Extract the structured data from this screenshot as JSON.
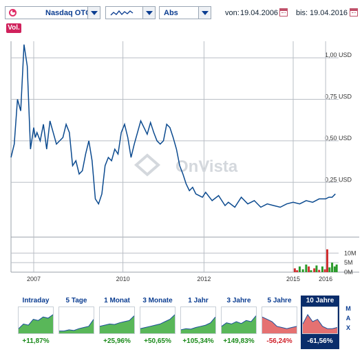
{
  "toolbar": {
    "exchange": "Nasdaq OTC",
    "scale": "Abs",
    "chart_style_icon": "line-chart-icon",
    "from_label": "von:",
    "from_date": "19.04.2006",
    "to_label": "bis:",
    "to_date": "19.04.2016"
  },
  "volume_button": "Vol.",
  "watermark": "OnVista",
  "colors": {
    "line": "#0b4a8f",
    "grid": "#b9bec5",
    "vol_up": "#2a9a2a",
    "vol_down": "#d03030",
    "accent": "#d0215c",
    "active_period_bg": "#0a2d6b",
    "positive": "#1a8a1a",
    "negative": "#d0202a"
  },
  "chart_data": {
    "type": "line",
    "series": [
      {
        "x": [
          2006.3,
          2006.4,
          2006.5,
          2006.6,
          2006.7,
          2006.8,
          2006.9,
          2007.0,
          2007.05,
          2007.1,
          2007.2,
          2007.3,
          2007.4,
          2007.5,
          2007.6,
          2007.7,
          2007.8,
          2007.9,
          2008.0,
          2008.1,
          2008.2,
          2008.3,
          2008.4,
          2008.5,
          2008.6,
          2008.7,
          2008.8,
          2008.9,
          2009.0,
          2009.1,
          2009.2,
          2009.3,
          2009.4,
          2009.5,
          2009.6,
          2009.7,
          2009.8,
          2009.9,
          2010.0,
          2010.1,
          2010.2,
          2010.3,
          2010.4,
          2010.5,
          2010.6,
          2010.7,
          2010.8,
          2010.9,
          2011.0,
          2011.1,
          2011.2,
          2011.3,
          2011.4,
          2011.5,
          2011.6,
          2011.7,
          2011.8,
          2011.9,
          2012.0,
          2012.1,
          2012.2,
          2012.3,
          2012.5,
          2012.7,
          2012.9,
          2013.0,
          2013.2,
          2013.4,
          2013.6,
          2013.8,
          2014.0,
          2014.2,
          2014.4,
          2014.6,
          2014.8,
          2015.0,
          2015.2,
          2015.4,
          2015.6,
          2015.8,
          2016.0,
          2016.1,
          2016.2,
          2016.3
        ],
        "y": [
          0.4,
          0.48,
          0.75,
          0.68,
          1.08,
          0.95,
          0.45,
          0.58,
          0.52,
          0.55,
          0.5,
          0.6,
          0.45,
          0.62,
          0.55,
          0.48,
          0.5,
          0.52,
          0.6,
          0.55,
          0.35,
          0.38,
          0.3,
          0.32,
          0.42,
          0.5,
          0.38,
          0.15,
          0.12,
          0.18,
          0.35,
          0.4,
          0.38,
          0.45,
          0.42,
          0.55,
          0.6,
          0.52,
          0.4,
          0.48,
          0.55,
          0.62,
          0.58,
          0.54,
          0.61,
          0.55,
          0.5,
          0.48,
          0.5,
          0.6,
          0.58,
          0.52,
          0.45,
          0.35,
          0.3,
          0.24,
          0.2,
          0.22,
          0.18,
          0.17,
          0.16,
          0.19,
          0.14,
          0.17,
          0.11,
          0.13,
          0.1,
          0.16,
          0.12,
          0.14,
          0.1,
          0.12,
          0.11,
          0.1,
          0.12,
          0.13,
          0.12,
          0.14,
          0.13,
          0.15,
          0.15,
          0.16,
          0.16,
          0.18
        ]
      }
    ],
    "y_ticks": [
      "1,00 USD",
      "0,75 USD",
      "0,50 USD",
      "0,25 USD"
    ],
    "y_tick_values": [
      1.0,
      0.75,
      0.5,
      0.25
    ],
    "x_ticks": [
      "2007",
      "2010",
      "2012",
      "2015",
      "2016"
    ],
    "x_tick_values": [
      2007,
      2009.75,
      2012.25,
      2015,
      2016
    ],
    "ylim": [
      -0.08,
      1.1
    ],
    "xlim": [
      2006.3,
      2016.4
    ],
    "volume_ticks": [
      "10M",
      "5M",
      "0M"
    ],
    "volume_tick_values": [
      10,
      5,
      0
    ],
    "volume_ylim": [
      0,
      13
    ],
    "volume": [
      {
        "x": 2015.05,
        "v": 2,
        "up": false
      },
      {
        "x": 2015.12,
        "v": 1,
        "up": false
      },
      {
        "x": 2015.2,
        "v": 3,
        "up": true
      },
      {
        "x": 2015.3,
        "v": 1.5,
        "up": true
      },
      {
        "x": 2015.4,
        "v": 4,
        "up": true
      },
      {
        "x": 2015.48,
        "v": 3,
        "up": false
      },
      {
        "x": 2015.55,
        "v": 1,
        "up": true
      },
      {
        "x": 2015.65,
        "v": 2,
        "up": false
      },
      {
        "x": 2015.72,
        "v": 3.5,
        "up": true
      },
      {
        "x": 2015.8,
        "v": 1.2,
        "up": false
      },
      {
        "x": 2015.9,
        "v": 3,
        "up": true
      },
      {
        "x": 2015.98,
        "v": 1.5,
        "up": false
      },
      {
        "x": 2016.05,
        "v": 12,
        "up": false
      },
      {
        "x": 2016.12,
        "v": 2.5,
        "up": true
      },
      {
        "x": 2016.2,
        "v": 5,
        "up": true
      },
      {
        "x": 2016.28,
        "v": 3,
        "up": true
      },
      {
        "x": 2016.34,
        "v": 4,
        "up": true
      }
    ]
  },
  "periods": [
    {
      "label": "Intraday",
      "value": "+11,87%",
      "positive": true,
      "active": false,
      "trend": [
        0.2,
        0.4,
        0.35,
        0.6,
        0.55,
        0.7,
        0.65,
        0.8
      ]
    },
    {
      "label": "5 Tage",
      "value": "",
      "positive": true,
      "active": false,
      "trend": [
        0.1,
        0.1,
        0.15,
        0.12,
        0.2,
        0.25,
        0.3,
        0.6
      ]
    },
    {
      "label": "1 Monat",
      "value": "+25,96%",
      "positive": true,
      "active": false,
      "trend": [
        0.3,
        0.35,
        0.4,
        0.38,
        0.45,
        0.5,
        0.55,
        0.75
      ]
    },
    {
      "label": "3 Monate",
      "value": "+50,65%",
      "positive": true,
      "active": false,
      "trend": [
        0.2,
        0.25,
        0.3,
        0.35,
        0.4,
        0.5,
        0.6,
        0.8
      ]
    },
    {
      "label": "1 Jahr",
      "value": "+105,34%",
      "positive": true,
      "active": false,
      "trend": [
        0.15,
        0.2,
        0.18,
        0.25,
        0.3,
        0.35,
        0.45,
        0.7
      ]
    },
    {
      "label": "3 Jahre",
      "value": "+149,83%",
      "positive": true,
      "active": false,
      "trend": [
        0.3,
        0.45,
        0.4,
        0.5,
        0.42,
        0.55,
        0.5,
        0.75
      ]
    },
    {
      "label": "5 Jahre",
      "value": "-56,24%",
      "positive": false,
      "active": false,
      "trend": [
        0.7,
        0.6,
        0.5,
        0.3,
        0.25,
        0.2,
        0.25,
        0.3
      ]
    },
    {
      "label": "10 Jahre",
      "value": "-61,56%",
      "positive": false,
      "active": true,
      "trend": [
        0.4,
        0.8,
        0.5,
        0.6,
        0.3,
        0.2,
        0.2,
        0.25
      ]
    }
  ],
  "max_label": "MAX"
}
